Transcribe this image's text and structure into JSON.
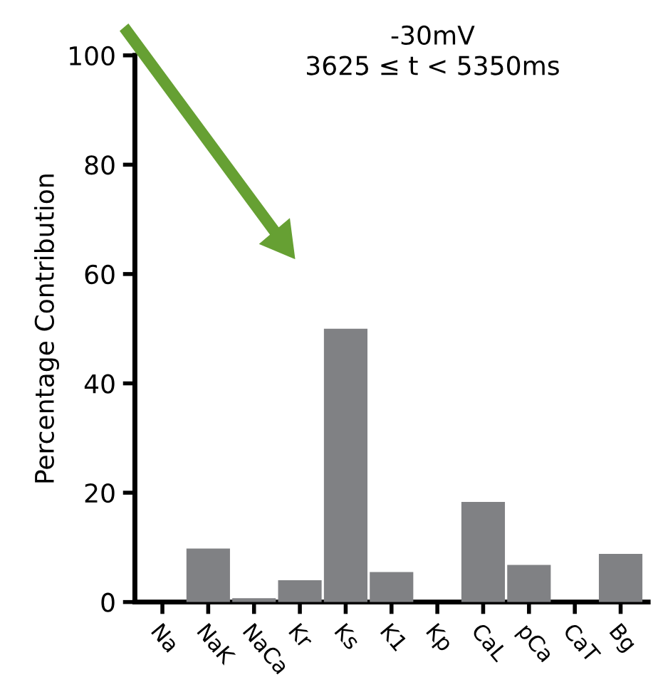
{
  "chart_data": {
    "type": "bar",
    "title": "-30mV",
    "subtitle": "3625 ≤ t < 5350ms",
    "ylabel": "Percentage Contribution",
    "categories": [
      "Na",
      "NaK",
      "NaCa",
      "Kr",
      "Ks",
      "K1",
      "Kp",
      "CaL",
      "pCa",
      "CaT",
      "Bg"
    ],
    "values": [
      0,
      9.8,
      0.7,
      4,
      50,
      5.5,
      0,
      18.3,
      6.8,
      0,
      8.8
    ],
    "color": "#808184",
    "ylim": [
      0,
      100
    ],
    "yticks": [
      0,
      20,
      40,
      60,
      80,
      100
    ],
    "grid": false,
    "legend": false
  }
}
